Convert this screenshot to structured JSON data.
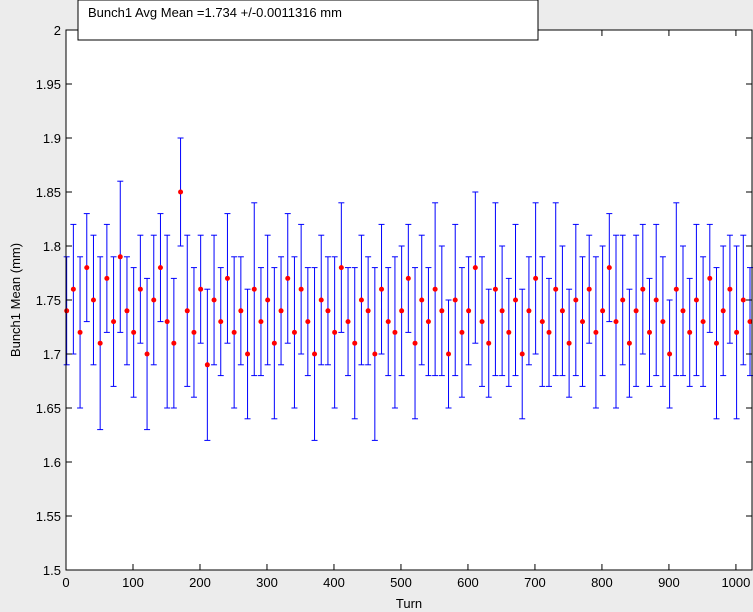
{
  "chart_data": {
    "type": "scatter",
    "title": "",
    "xlabel": "Turn",
    "ylabel": "Bunch1 Mean (mm)",
    "xlim": [
      0,
      1024
    ],
    "ylim": [
      1.5,
      2.0
    ],
    "x_ticks": [
      0,
      100,
      200,
      300,
      400,
      500,
      600,
      700,
      800,
      900,
      1000
    ],
    "y_ticks": [
      1.5,
      1.55,
      1.6,
      1.65,
      1.7,
      1.75,
      1.8,
      1.85,
      1.9,
      1.95,
      2
    ],
    "x_tick_labels": [
      "0",
      "100",
      "200",
      "300",
      "400",
      "500",
      "600",
      "700",
      "800",
      "900",
      "1000"
    ],
    "y_tick_labels": [
      "1.5",
      "1.55",
      "1.6",
      "1.65",
      "1.7",
      "1.75",
      "1.8",
      "1.85",
      "1.9",
      "1.95",
      "2"
    ],
    "legend_text": "Bunch1 Avg Mean =1.734 +/-0.0011316 mm",
    "legend_position": "top-left",
    "grid": false,
    "series": [
      {
        "marker_color": "#ff0000",
        "errorbar_color": "#0000ff",
        "x": [
          1,
          11,
          21,
          31,
          41,
          51,
          61,
          71,
          81,
          91,
          101,
          111,
          121,
          131,
          141,
          151,
          161,
          171,
          181,
          191,
          201,
          211,
          221,
          231,
          241,
          251,
          261,
          271,
          281,
          291,
          301,
          311,
          321,
          331,
          341,
          351,
          361,
          371,
          381,
          391,
          401,
          411,
          421,
          431,
          441,
          451,
          461,
          471,
          481,
          491,
          501,
          511,
          521,
          531,
          541,
          551,
          561,
          571,
          581,
          591,
          601,
          611,
          621,
          631,
          641,
          651,
          661,
          671,
          681,
          691,
          701,
          711,
          721,
          731,
          741,
          751,
          761,
          771,
          781,
          791,
          801,
          811,
          821,
          831,
          841,
          851,
          861,
          871,
          881,
          891,
          901,
          911,
          921,
          931,
          941,
          951,
          961,
          971,
          981,
          991,
          1001,
          1011,
          1021
        ],
        "y": [
          1.74,
          1.76,
          1.72,
          1.78,
          1.75,
          1.71,
          1.77,
          1.73,
          1.79,
          1.74,
          1.72,
          1.76,
          1.7,
          1.75,
          1.78,
          1.73,
          1.71,
          1.85,
          1.74,
          1.72,
          1.76,
          1.69,
          1.75,
          1.73,
          1.77,
          1.72,
          1.74,
          1.7,
          1.76,
          1.73,
          1.75,
          1.71,
          1.74,
          1.77,
          1.72,
          1.76,
          1.73,
          1.7,
          1.75,
          1.74,
          1.72,
          1.78,
          1.73,
          1.71,
          1.75,
          1.74,
          1.7,
          1.76,
          1.73,
          1.72,
          1.74,
          1.77,
          1.71,
          1.75,
          1.73,
          1.76,
          1.74,
          1.7,
          1.75,
          1.72,
          1.74,
          1.78,
          1.73,
          1.71,
          1.76,
          1.74,
          1.72,
          1.75,
          1.7,
          1.74,
          1.77,
          1.73,
          1.72,
          1.76,
          1.74,
          1.71,
          1.75,
          1.73,
          1.76,
          1.72,
          1.74,
          1.78,
          1.73,
          1.75,
          1.71,
          1.74,
          1.76,
          1.72,
          1.75,
          1.73,
          1.7,
          1.76,
          1.74,
          1.72,
          1.75,
          1.73,
          1.77,
          1.71,
          1.74,
          1.76,
          1.72,
          1.75,
          1.73
        ],
        "err": [
          0.05,
          0.06,
          0.07,
          0.05,
          0.06,
          0.08,
          0.05,
          0.06,
          0.07,
          0.05,
          0.06,
          0.05,
          0.07,
          0.06,
          0.05,
          0.08,
          0.06,
          0.05,
          0.07,
          0.06,
          0.05,
          0.07,
          0.06,
          0.05,
          0.06,
          0.07,
          0.05,
          0.06,
          0.08,
          0.05,
          0.06,
          0.07,
          0.05,
          0.06,
          0.07,
          0.06,
          0.05,
          0.08,
          0.06,
          0.05,
          0.07,
          0.06,
          0.05,
          0.07,
          0.06,
          0.05,
          0.08,
          0.06,
          0.05,
          0.07,
          0.06,
          0.05,
          0.07,
          0.06,
          0.05,
          0.08,
          0.06,
          0.05,
          0.07,
          0.06,
          0.05,
          0.07,
          0.06,
          0.05,
          0.08,
          0.06,
          0.05,
          0.07,
          0.06,
          0.05,
          0.07,
          0.06,
          0.05,
          0.08,
          0.06,
          0.05,
          0.07,
          0.06,
          0.05,
          0.07,
          0.06,
          0.05,
          0.08,
          0.06,
          0.05,
          0.07,
          0.06,
          0.05,
          0.07,
          0.06,
          0.05,
          0.08,
          0.06,
          0.05,
          0.07,
          0.06,
          0.05,
          0.07,
          0.06,
          0.05,
          0.08,
          0.06,
          0.05
        ]
      }
    ]
  }
}
